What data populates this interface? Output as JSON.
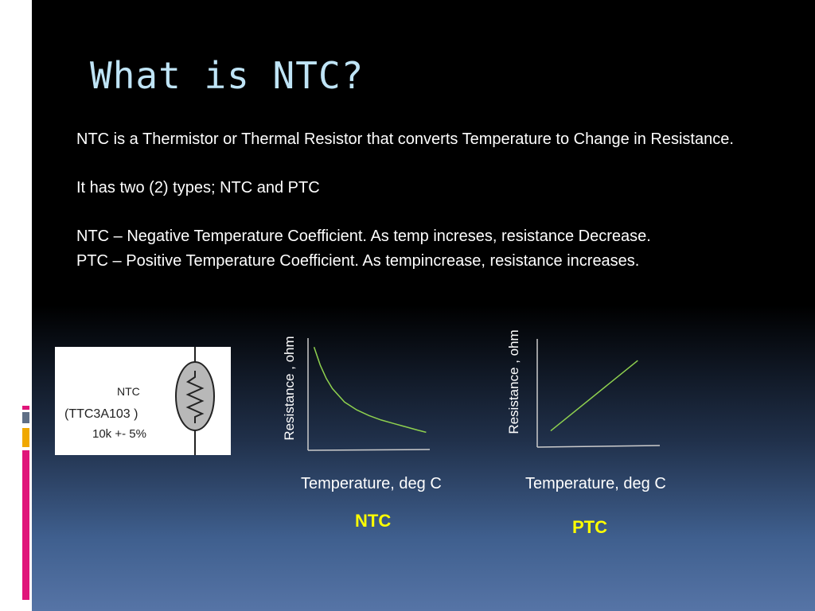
{
  "slide": {
    "title": "What is NTC?",
    "paragraphs": [
      "NTC is a Thermistor or Thermal Resistor that converts Temperature to Change in Resistance.",
      "It has two (2) types; NTC and PTC",
      "NTC – Negative Temperature Coefficient.  As temp increses, resistance Decrease.",
      "PTC – Positive Temperature Coefficient. As tempincrease, resistance increases."
    ],
    "symbol": {
      "name": "NTC",
      "part": "(TTC3A103 )",
      "rating": "10k +- 5%"
    }
  },
  "colors": {
    "title": "#bfe4f6",
    "curve": "#8fd14f",
    "tag": "#ffff00",
    "accent_pink": "#e0157a",
    "accent_gray": "#5f6f86",
    "accent_orange": "#f0a800"
  },
  "chart_data": [
    {
      "type": "line",
      "name": "NTC",
      "xlabel": "Temperature, deg C",
      "ylabel": "Resistance , ohm",
      "series": [
        {
          "x": [
            0.05,
            0.1,
            0.15,
            0.2,
            0.3,
            0.4,
            0.5,
            0.6,
            0.7,
            0.8,
            0.9,
            0.97
          ],
          "y": [
            0.92,
            0.76,
            0.64,
            0.55,
            0.43,
            0.36,
            0.31,
            0.27,
            0.24,
            0.21,
            0.18,
            0.16
          ]
        }
      ],
      "tag": "NTC"
    },
    {
      "type": "line",
      "name": "PTC",
      "xlabel": "Temperature, deg C",
      "ylabel": "Resistance , ohm",
      "series": [
        {
          "x": [
            0.11,
            0.82
          ],
          "y": [
            0.15,
            0.8
          ]
        }
      ],
      "tag": "PTC"
    }
  ]
}
